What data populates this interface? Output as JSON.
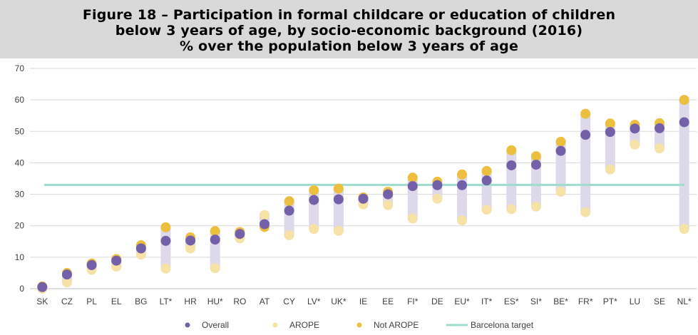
{
  "figure": {
    "title_line1": "Figure 18 – Participation in formal childcare or education of children",
    "title_line2": "below 3 years of age, by socio-economic background (2016)",
    "title_line3": "% over the population below 3 years of age"
  },
  "colors": {
    "overall": "#7460a8",
    "arope": "#f6e2a6",
    "not_arope": "#ecbf3e",
    "barcelona": "#9fdccf",
    "range_bar": "#ddd9ea",
    "title_band": "#d9d9d9"
  },
  "chart_data": {
    "type": "scatter",
    "title": "",
    "xlabel": "",
    "ylabel": "",
    "ylim": [
      0,
      70
    ],
    "yticks": [
      0,
      10,
      20,
      30,
      40,
      50,
      60,
      70
    ],
    "grid": true,
    "legend_placement": "bottom",
    "categories": [
      "SK",
      "CZ",
      "PL",
      "EL",
      "BG",
      "LT*",
      "HR",
      "HU*",
      "RO",
      "AT",
      "CY",
      "LV*",
      "UK*",
      "IE",
      "EE",
      "FI*",
      "DE",
      "EU*",
      "IT*",
      "ES*",
      "SI*",
      "BE*",
      "FR*",
      "PT*",
      "LU",
      "SE",
      "NL*"
    ],
    "series": [
      {
        "name": "Overall",
        "values": [
          0.5,
          4.5,
          7.5,
          8.9,
          12.8,
          15.2,
          15.3,
          15.6,
          17.4,
          20.5,
          24.8,
          28.2,
          28.4,
          28.6,
          30.0,
          32.6,
          32.9,
          32.9,
          34.4,
          39.2,
          39.4,
          43.8,
          48.9,
          49.8,
          50.9,
          51.0,
          52.9
        ]
      },
      {
        "name": "AROPE",
        "values": [
          0.0,
          2.0,
          6.0,
          7.0,
          10.8,
          6.4,
          12.8,
          6.5,
          16.0,
          23.4,
          17.0,
          19.0,
          18.4,
          26.8,
          26.6,
          22.3,
          28.6,
          21.7,
          25.1,
          25.3,
          26.1,
          30.8,
          24.3,
          37.9,
          45.8,
          44.6,
          19.0
        ]
      },
      {
        "name": "Not AROPE",
        "values": [
          0.7,
          5.0,
          8.0,
          9.4,
          13.8,
          19.5,
          16.3,
          18.3,
          18.0,
          19.6,
          27.8,
          31.3,
          31.8,
          29.0,
          30.8,
          35.3,
          34.0,
          36.3,
          37.4,
          44.0,
          42.1,
          46.7,
          55.6,
          52.5,
          52.1,
          52.6,
          60.0
        ]
      }
    ],
    "reference_line": {
      "name": "Barcelona target",
      "value": 33
    }
  }
}
